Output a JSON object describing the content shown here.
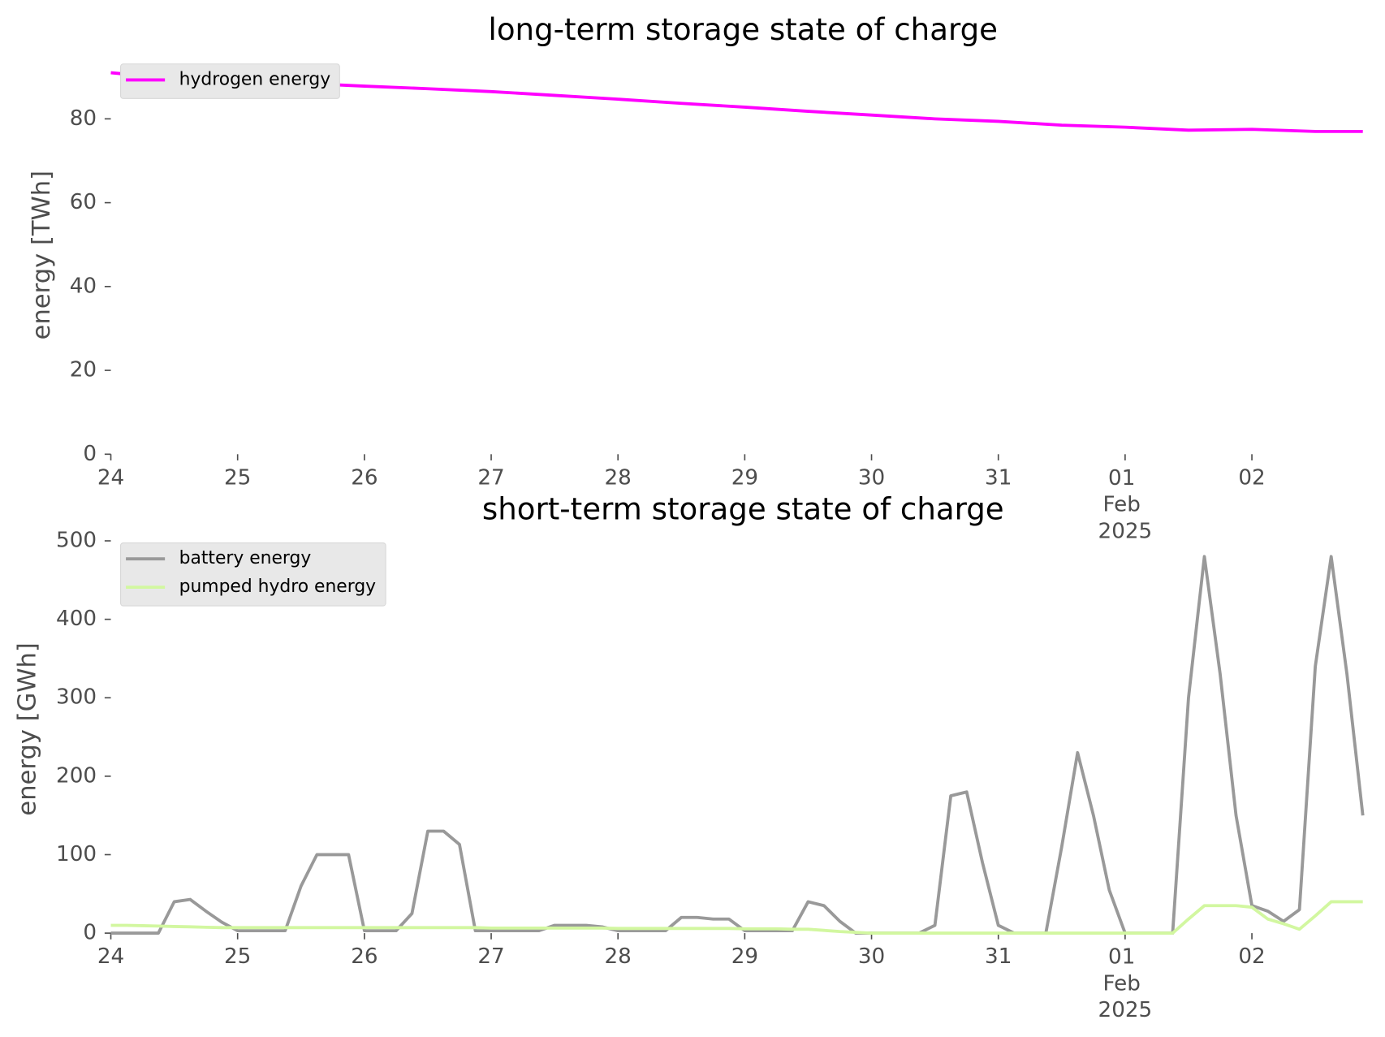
{
  "chart_data": [
    {
      "type": "line",
      "title": "long-term storage state of charge",
      "ylabel": "energy [TWh]",
      "x": [
        "2025-01-24T00:00",
        "2025-01-24T12:00",
        "2025-01-25T00:00",
        "2025-01-25T12:00",
        "2025-01-26T00:00",
        "2025-01-26T12:00",
        "2025-01-27T00:00",
        "2025-01-27T12:00",
        "2025-01-28T00:00",
        "2025-01-28T12:00",
        "2025-01-29T00:00",
        "2025-01-29T12:00",
        "2025-01-30T00:00",
        "2025-01-30T12:00",
        "2025-01-31T00:00",
        "2025-01-31T12:00",
        "2025-02-01T00:00",
        "2025-02-01T12:00",
        "2025-02-02T00:00",
        "2025-02-02T12:00",
        "2025-02-02T21:00"
      ],
      "series": [
        {
          "name": "hydrogen energy",
          "color": "#ff00ff",
          "values": [
            91,
            89.6,
            89,
            88.5,
            87.8,
            87.2,
            86.5,
            85.6,
            84.7,
            83.7,
            82.8,
            81.8,
            80.9,
            80,
            79.4,
            78.5,
            78,
            77.3,
            77.5,
            77,
            77
          ]
        }
      ],
      "xlim": [
        "2025-01-24T00:00",
        "2025-02-02T21:00"
      ],
      "xticks": [
        {
          "value": "2025-01-24",
          "label": "24"
        },
        {
          "value": "2025-01-25",
          "label": "25"
        },
        {
          "value": "2025-01-26",
          "label": "26"
        },
        {
          "value": "2025-01-27",
          "label": "27"
        },
        {
          "value": "2025-01-28",
          "label": "28"
        },
        {
          "value": "2025-01-29",
          "label": "29"
        },
        {
          "value": "2025-01-30",
          "label": "30"
        },
        {
          "value": "2025-01-31",
          "label": "31"
        },
        {
          "value": "2025-02-01",
          "label": "01\nFeb\n2025"
        },
        {
          "value": "2025-02-02",
          "label": "02"
        }
      ],
      "ylim": [
        0,
        95
      ],
      "yticks": [
        0,
        20,
        40,
        60,
        80
      ],
      "grid": false,
      "legend": "upper left"
    },
    {
      "type": "line",
      "title": "short-term storage state of charge",
      "ylabel": "energy [GWh]",
      "x": [
        "2025-01-24T00:00",
        "2025-01-24T03:00",
        "2025-01-24T06:00",
        "2025-01-24T09:00",
        "2025-01-24T12:00",
        "2025-01-24T15:00",
        "2025-01-24T18:00",
        "2025-01-24T21:00",
        "2025-01-25T00:00",
        "2025-01-25T03:00",
        "2025-01-25T06:00",
        "2025-01-25T09:00",
        "2025-01-25T12:00",
        "2025-01-25T15:00",
        "2025-01-25T18:00",
        "2025-01-25T21:00",
        "2025-01-26T00:00",
        "2025-01-26T03:00",
        "2025-01-26T06:00",
        "2025-01-26T09:00",
        "2025-01-26T12:00",
        "2025-01-26T15:00",
        "2025-01-26T18:00",
        "2025-01-26T21:00",
        "2025-01-27T00:00",
        "2025-01-27T03:00",
        "2025-01-27T06:00",
        "2025-01-27T09:00",
        "2025-01-27T12:00",
        "2025-01-27T15:00",
        "2025-01-27T18:00",
        "2025-01-27T21:00",
        "2025-01-28T00:00",
        "2025-01-28T03:00",
        "2025-01-28T06:00",
        "2025-01-28T09:00",
        "2025-01-28T12:00",
        "2025-01-28T15:00",
        "2025-01-28T18:00",
        "2025-01-28T21:00",
        "2025-01-29T00:00",
        "2025-01-29T03:00",
        "2025-01-29T06:00",
        "2025-01-29T09:00",
        "2025-01-29T12:00",
        "2025-01-29T15:00",
        "2025-01-29T18:00",
        "2025-01-29T21:00",
        "2025-01-30T00:00",
        "2025-01-30T03:00",
        "2025-01-30T06:00",
        "2025-01-30T09:00",
        "2025-01-30T12:00",
        "2025-01-30T15:00",
        "2025-01-30T18:00",
        "2025-01-30T21:00",
        "2025-01-31T00:00",
        "2025-01-31T03:00",
        "2025-01-31T06:00",
        "2025-01-31T09:00",
        "2025-01-31T12:00",
        "2025-01-31T15:00",
        "2025-01-31T18:00",
        "2025-01-31T21:00",
        "2025-02-01T00:00",
        "2025-02-01T03:00",
        "2025-02-01T06:00",
        "2025-02-01T09:00",
        "2025-02-01T12:00",
        "2025-02-01T15:00",
        "2025-02-01T18:00",
        "2025-02-01T21:00",
        "2025-02-02T00:00",
        "2025-02-02T03:00",
        "2025-02-02T06:00",
        "2025-02-02T09:00",
        "2025-02-02T12:00",
        "2025-02-02T15:00",
        "2025-02-02T18:00",
        "2025-02-02T21:00"
      ],
      "series": [
        {
          "name": "battery energy",
          "color": "#999999",
          "values": [
            0,
            0,
            0,
            0,
            40,
            43,
            28,
            14,
            3,
            3,
            3,
            3,
            60,
            100,
            100,
            100,
            3,
            3,
            3,
            25,
            130,
            130,
            113,
            3,
            3,
            3,
            3,
            3,
            10,
            10,
            10,
            8,
            3,
            3,
            3,
            3,
            20,
            20,
            18,
            18,
            3,
            3,
            3,
            3,
            40,
            35,
            15,
            0,
            0,
            0,
            0,
            0,
            10,
            175,
            180,
            90,
            10,
            0,
            0,
            0,
            110,
            230,
            150,
            55,
            0,
            0,
            0,
            0,
            300,
            480,
            330,
            150,
            35,
            28,
            15,
            30,
            340,
            480,
            330,
            150
          ]
        },
        {
          "name": "pumped hydro energy",
          "color": "#d2f7a0",
          "values": [
            10,
            10,
            9.5,
            9,
            8.5,
            8,
            7.5,
            7,
            7,
            7,
            7,
            7,
            7,
            7,
            7,
            7,
            7,
            7,
            7,
            7,
            7,
            7,
            7,
            7,
            6.5,
            6.5,
            6.5,
            6.5,
            6.5,
            6.5,
            6.5,
            6.5,
            6,
            6,
            6,
            6,
            6,
            6,
            6,
            6,
            5.5,
            5.5,
            5.5,
            5,
            5,
            3.5,
            2,
            1,
            0,
            0,
            0,
            0,
            0,
            0,
            0,
            0,
            0,
            0,
            0,
            0,
            0,
            0,
            0,
            0,
            0,
            0,
            0,
            0,
            18,
            35,
            35,
            35,
            33,
            18,
            12,
            5,
            22,
            40,
            40,
            40
          ]
        }
      ],
      "xlim": [
        "2025-01-24T00:00",
        "2025-02-02T21:00"
      ],
      "xticks": [
        {
          "value": "2025-01-24",
          "label": "24"
        },
        {
          "value": "2025-01-25",
          "label": "25"
        },
        {
          "value": "2025-01-26",
          "label": "26"
        },
        {
          "value": "2025-01-27",
          "label": "27"
        },
        {
          "value": "2025-01-28",
          "label": "28"
        },
        {
          "value": "2025-01-29",
          "label": "29"
        },
        {
          "value": "2025-01-30",
          "label": "30"
        },
        {
          "value": "2025-01-31",
          "label": "31"
        },
        {
          "value": "2025-02-01",
          "label": "01\nFeb\n2025"
        },
        {
          "value": "2025-02-02",
          "label": "02"
        }
      ],
      "ylim": [
        0,
        520
      ],
      "yticks": [
        0,
        100,
        200,
        300,
        400,
        500
      ],
      "grid": false,
      "legend": "upper left"
    }
  ]
}
